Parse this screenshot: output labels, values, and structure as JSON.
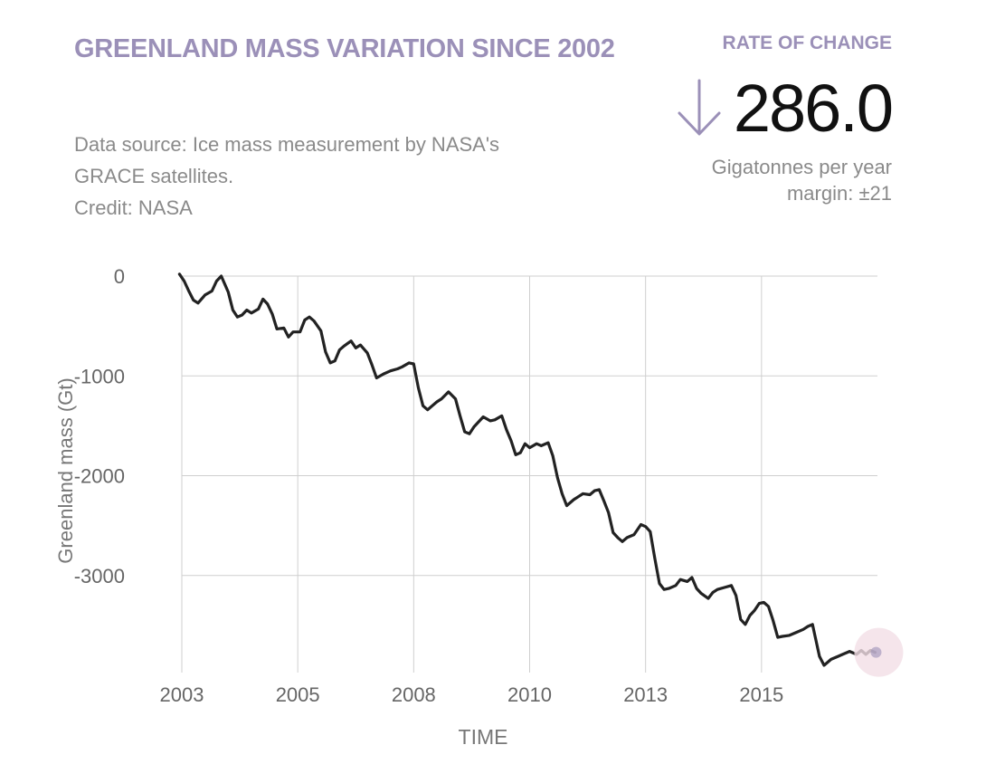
{
  "header": {
    "title": "GREENLAND MASS VARIATION SINCE 2002",
    "source_line1": "Data source: Ice mass measurement by NASA's",
    "source_line2": "GRACE satellites.",
    "credit": "Credit: NASA"
  },
  "rate": {
    "label": "RATE OF CHANGE",
    "value": "286.0",
    "direction_icon": "down-arrow-icon",
    "unit": "Gigatonnes per year",
    "margin": "margin: ±21"
  },
  "colors": {
    "accent": "#9b90b8",
    "line": "#222222",
    "grid": "#cfcfcf",
    "highlight": "#f3dfe6"
  },
  "chart_data": {
    "type": "line",
    "title": "",
    "xlabel": "TIME",
    "ylabel": "Greenland mass (Gt)",
    "x_tick_labels": [
      "2003",
      "2005",
      "2008",
      "2010",
      "2013",
      "2015"
    ],
    "x_tick_values": [
      2002.8,
      2005.3,
      2007.8,
      2010.3,
      2012.8,
      2015.3
    ],
    "y_tick_labels": [
      "0",
      "-1000",
      "-2000",
      "-3000"
    ],
    "y_tick_values": [
      0,
      -1000,
      -2000,
      -3000
    ],
    "xlim": [
      2002.8,
      2017.8
    ],
    "ylim": [
      -3900,
      0
    ],
    "grid": true,
    "series": [
      {
        "x": [
          2002.75,
          2002.85,
          2002.95,
          2003.05,
          2003.15,
          2003.3,
          2003.45,
          2003.55,
          2003.65,
          2003.8,
          2003.9,
          2004.0,
          2004.1,
          2004.2,
          2004.3,
          2004.45,
          2004.55,
          2004.65,
          2004.75,
          2004.85,
          2005.0,
          2005.1,
          2005.2,
          2005.35,
          2005.45,
          2005.55,
          2005.65,
          2005.8,
          2005.9,
          2006.0,
          2006.1,
          2006.2,
          2006.3,
          2006.45,
          2006.55,
          2006.65,
          2006.8,
          2006.9,
          2007.0,
          2007.15,
          2007.3,
          2007.45,
          2007.55,
          2007.7,
          2007.8,
          2007.9,
          2008.0,
          2008.1,
          2008.2,
          2008.3,
          2008.4,
          2008.55,
          2008.7,
          2008.8,
          2008.9,
          2009.0,
          2009.1,
          2009.2,
          2009.3,
          2009.45,
          2009.55,
          2009.7,
          2009.8,
          2009.9,
          2010.0,
          2010.1,
          2010.2,
          2010.3,
          2010.45,
          2010.55,
          2010.7,
          2010.8,
          2010.9,
          2011.0,
          2011.1,
          2011.25,
          2011.35,
          2011.45,
          2011.6,
          2011.7,
          2011.8,
          2011.9,
          2012.0,
          2012.1,
          2012.2,
          2012.3,
          2012.4,
          2012.55,
          2012.7,
          2012.8,
          2012.9,
          2013.0,
          2013.1,
          2013.2,
          2013.3,
          2013.45,
          2013.55,
          2013.7,
          2013.8,
          2013.9,
          2014.0,
          2014.15,
          2014.25,
          2014.35,
          2014.5,
          2014.65,
          2014.75,
          2014.85,
          2014.95,
          2015.05,
          2015.15,
          2015.25,
          2015.35,
          2015.45,
          2015.55,
          2015.65,
          2015.75,
          2015.9,
          2016.05,
          2016.2,
          2016.3,
          2016.4,
          2016.55,
          2016.65,
          2016.8,
          2016.95,
          2017.05,
          2017.2,
          2017.35,
          2017.45,
          2017.55,
          2017.65,
          2017.75
        ],
        "y": [
          20,
          -50,
          -150,
          -240,
          -270,
          -190,
          -150,
          -50,
          0,
          -160,
          -340,
          -410,
          -390,
          -340,
          -370,
          -330,
          -230,
          -280,
          -380,
          -530,
          -520,
          -610,
          -560,
          -560,
          -440,
          -410,
          -450,
          -550,
          -760,
          -870,
          -850,
          -740,
          -700,
          -650,
          -720,
          -690,
          -770,
          -890,
          -1020,
          -980,
          -950,
          -930,
          -910,
          -870,
          -880,
          -1120,
          -1300,
          -1340,
          -1300,
          -1260,
          -1230,
          -1160,
          -1230,
          -1400,
          -1560,
          -1580,
          -1510,
          -1460,
          -1410,
          -1450,
          -1440,
          -1400,
          -1540,
          -1650,
          -1790,
          -1770,
          -1680,
          -1720,
          -1680,
          -1700,
          -1670,
          -1800,
          -2020,
          -2180,
          -2300,
          -2240,
          -2210,
          -2180,
          -2190,
          -2150,
          -2140,
          -2250,
          -2370,
          -2570,
          -2620,
          -2660,
          -2620,
          -2590,
          -2490,
          -2510,
          -2560,
          -2830,
          -3080,
          -3140,
          -3130,
          -3100,
          -3040,
          -3060,
          -3020,
          -3130,
          -3180,
          -3230,
          -3170,
          -3140,
          -3120,
          -3100,
          -3200,
          -3440,
          -3490,
          -3400,
          -3350,
          -3280,
          -3270,
          -3310,
          -3450,
          -3620,
          -3610,
          -3600,
          -3570,
          -3540,
          -3510,
          -3490,
          -3810,
          -3900,
          -3840,
          -3810,
          -3790,
          -3760,
          -3790,
          -3750,
          -3790,
          -3750,
          -3770
        ]
      }
    ]
  }
}
